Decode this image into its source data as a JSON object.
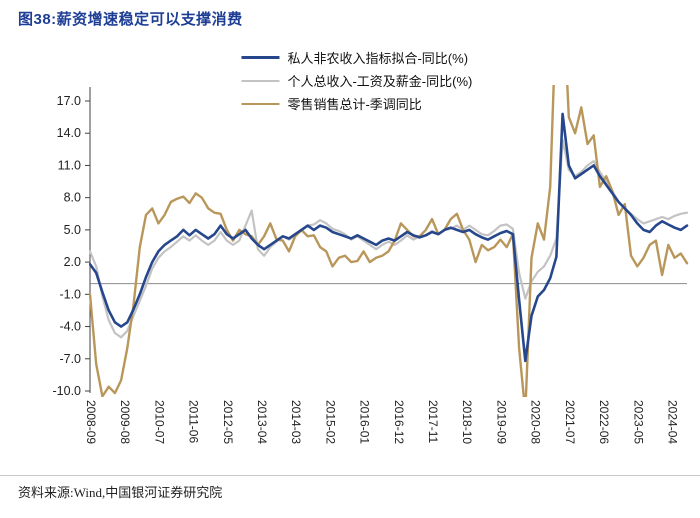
{
  "header": {
    "title": "图38:薪资增速稳定可以支撑消费"
  },
  "footer": {
    "source": "资料来源:Wind,中国银河证券研究院"
  },
  "colors": {
    "title_navy": "#1e3e96",
    "series_navy": "#26478c",
    "series_gray": "#c3c3c3",
    "series_tan": "#b9975b",
    "zero_line": "#8c8c8c",
    "axis": "#404040"
  },
  "chart_data": {
    "type": "line",
    "title": "图38:薪资增速稳定可以支撑消费",
    "xlabel": "",
    "ylabel": "",
    "x_start": "2008-09",
    "x_end": "2024-09",
    "x_step_months": 2,
    "x_tick_labels": [
      "2008-09",
      "2009-08",
      "2010-07",
      "2011-06",
      "2012-05",
      "2013-04",
      "2014-03",
      "2015-02",
      "2016-01",
      "2016-12",
      "2017-11",
      "2018-10",
      "2019-09",
      "2020-08",
      "2021-07",
      "2022-06",
      "2023-05",
      "2024-04"
    ],
    "y_ticks": [
      17,
      14,
      11,
      8,
      5,
      2,
      -1,
      -4,
      -7,
      -10
    ],
    "ylim": [
      -10,
      17
    ],
    "grid": false,
    "zero_line": true,
    "legend_position": "top-center",
    "series": [
      {
        "name": "私人非农收入指标拟合-同比(%)",
        "color": "#26478c",
        "width": 2.6,
        "values": [
          1.8,
          1.0,
          -0.8,
          -2.5,
          -3.6,
          -4.0,
          -3.6,
          -2.4,
          -1.0,
          0.6,
          2.0,
          3.0,
          3.6,
          4.0,
          4.4,
          5.0,
          4.5,
          5.0,
          4.6,
          4.2,
          4.6,
          5.4,
          4.6,
          4.2,
          4.6,
          5.0,
          4.2,
          3.6,
          3.2,
          3.6,
          4.0,
          4.4,
          4.2,
          4.6,
          5.0,
          5.4,
          5.0,
          5.4,
          5.2,
          4.8,
          4.6,
          4.4,
          4.2,
          4.5,
          4.2,
          3.9,
          3.6,
          4.0,
          4.2,
          4.0,
          4.4,
          4.8,
          4.5,
          4.3,
          4.5,
          4.8,
          4.6,
          5.0,
          5.2,
          5.0,
          4.8,
          5.0,
          4.6,
          4.3,
          4.1,
          4.4,
          4.7,
          4.9,
          4.6,
          -1.5,
          -7.2,
          -3.0,
          -1.2,
          -0.6,
          0.5,
          2.5,
          15.8,
          11.0,
          9.8,
          10.2,
          10.6,
          11.0,
          10.0,
          9.2,
          8.4,
          7.6,
          7.0,
          6.4,
          5.6,
          5.0,
          4.8,
          5.4,
          5.8,
          5.5,
          5.2,
          5.0,
          5.4
        ]
      },
      {
        "name": "个人总收入-工资及薪金-同比(%)",
        "color": "#c3c3c3",
        "width": 2.2,
        "values": [
          3.0,
          1.6,
          -1.2,
          -3.4,
          -4.6,
          -5.0,
          -4.4,
          -3.0,
          -1.6,
          -0.2,
          1.4,
          2.4,
          3.0,
          3.4,
          3.9,
          4.4,
          4.0,
          4.5,
          4.0,
          3.6,
          4.0,
          4.8,
          4.0,
          3.6,
          4.0,
          5.4,
          6.8,
          3.2,
          2.6,
          3.4,
          3.9,
          4.4,
          4.1,
          4.5,
          4.9,
          5.4,
          5.5,
          5.9,
          5.6,
          5.1,
          4.9,
          4.6,
          4.1,
          4.4,
          4.0,
          3.6,
          3.2,
          3.6,
          3.9,
          3.6,
          4.0,
          4.5,
          4.1,
          4.4,
          4.5,
          4.9,
          4.6,
          5.0,
          5.1,
          5.4,
          5.0,
          5.4,
          5.0,
          4.6,
          4.5,
          4.9,
          5.4,
          5.5,
          5.1,
          1.0,
          -1.4,
          0.2,
          1.1,
          1.6,
          2.6,
          4.2,
          13.4,
          10.6,
          10.0,
          10.4,
          11.0,
          11.4,
          10.4,
          9.5,
          8.6,
          7.6,
          7.0,
          6.5,
          6.0,
          5.6,
          5.8,
          6.0,
          6.2,
          6.0,
          6.3,
          6.5,
          6.6
        ]
      },
      {
        "name": "零售销售总计-季调同比",
        "color": "#b9975b",
        "width": 2.4,
        "values": [
          -1.0,
          -7.5,
          -10.5,
          -9.6,
          -10.2,
          -9.0,
          -6.0,
          -2.0,
          3.4,
          6.4,
          7.0,
          5.6,
          6.4,
          7.6,
          7.9,
          8.1,
          7.5,
          8.4,
          8.0,
          7.0,
          6.6,
          6.5,
          5.0,
          4.0,
          5.0,
          4.6,
          4.4,
          3.6,
          4.4,
          5.6,
          4.1,
          4.0,
          3.0,
          4.4,
          5.0,
          4.4,
          4.5,
          3.4,
          3.0,
          1.6,
          2.4,
          2.6,
          2.0,
          2.1,
          3.0,
          2.0,
          2.4,
          2.6,
          3.0,
          4.0,
          5.6,
          5.0,
          4.4,
          4.4,
          5.0,
          6.0,
          4.6,
          5.0,
          6.0,
          6.5,
          5.0,
          4.1,
          2.0,
          3.6,
          3.1,
          3.4,
          4.1,
          3.4,
          4.6,
          -6.0,
          -12.0,
          2.4,
          5.6,
          4.1,
          9.0,
          26.0,
          28.0,
          15.5,
          14.0,
          16.4,
          13.0,
          13.8,
          9.0,
          10.0,
          8.6,
          6.4,
          7.4,
          2.6,
          1.6,
          2.4,
          3.6,
          4.0,
          0.8,
          3.6,
          2.4,
          2.8,
          1.9
        ]
      }
    ]
  }
}
